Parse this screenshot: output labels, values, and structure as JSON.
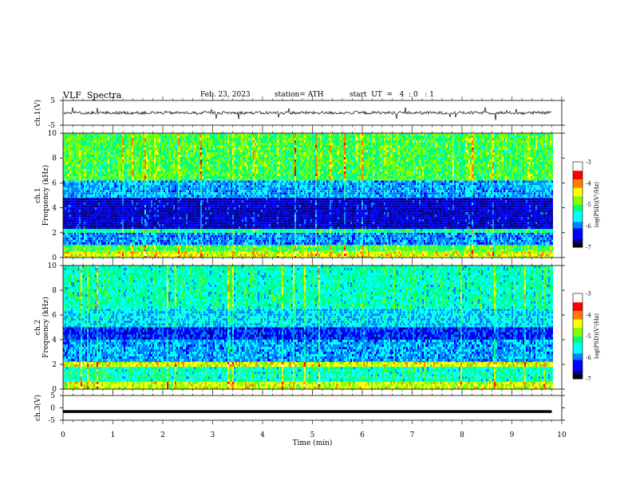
{
  "header": {
    "title": "VLF  Spectra",
    "date": "Feb. 23, 2023",
    "station": "station= ATH",
    "start_ut": "start  UT  =   4  : 0   : 1"
  },
  "chart_data": [
    {
      "type": "line",
      "panel": "ch1-waveform",
      "ylabel": "ch.1(V)",
      "yticks": [
        "5",
        "-5"
      ],
      "ylim": [
        -5,
        5
      ],
      "x_range_min": [
        0,
        9.8
      ],
      "description_note": "",
      "mean_value": 0,
      "noise_amplitude": 1.2,
      "color": "#000000"
    },
    {
      "type": "heatmap",
      "panel": "ch1-spectrogram",
      "ylabel": "Frequency  (kHz)",
      "channel_label": "ch.1",
      "yticks": [
        "0",
        "2",
        "4",
        "6",
        "8",
        "10"
      ],
      "ylim": [
        0,
        10
      ],
      "x_range_min": [
        0,
        9.8
      ],
      "colorbar": {
        "label": "log(PSD)(V²/Hz)",
        "ticks": [
          "-3",
          "-4",
          "-5",
          "-6",
          "-7"
        ],
        "range": [
          -7,
          -3
        ]
      },
      "bands": [
        {
          "f_min": 0.0,
          "f_max": 0.5,
          "level": -4.5
        },
        {
          "f_min": 0.5,
          "f_max": 1.0,
          "level": -5.0
        },
        {
          "f_min": 1.0,
          "f_max": 2.0,
          "level": -6.0
        },
        {
          "f_min": 2.0,
          "f_max": 2.3,
          "level": -5.3
        },
        {
          "f_min": 2.3,
          "f_max": 4.8,
          "level": -6.6
        },
        {
          "f_min": 4.8,
          "f_max": 6.2,
          "level": -5.9
        },
        {
          "f_min": 6.2,
          "f_max": 10.0,
          "level": -5.0
        }
      ]
    },
    {
      "type": "heatmap",
      "panel": "ch2-spectrogram",
      "ylabel": "Frequency  (kHz)",
      "channel_label": "ch.2",
      "yticks": [
        "0",
        "2",
        "4",
        "6",
        "8",
        "10"
      ],
      "ylim": [
        0,
        10
      ],
      "x_range_min": [
        0,
        9.8
      ],
      "colorbar": {
        "label": "log(PSD)(V²/Hz)",
        "ticks": [
          "-3",
          "-4",
          "-5",
          "-6",
          "-7"
        ],
        "range": [
          -7,
          -3
        ]
      },
      "bands": [
        {
          "f_min": 0.0,
          "f_max": 0.6,
          "level": -4.6
        },
        {
          "f_min": 0.6,
          "f_max": 1.8,
          "level": -5.4
        },
        {
          "f_min": 1.8,
          "f_max": 2.2,
          "level": -4.5
        },
        {
          "f_min": 2.2,
          "f_max": 4.0,
          "level": -5.9
        },
        {
          "f_min": 4.0,
          "f_max": 5.0,
          "level": -6.3
        },
        {
          "f_min": 5.0,
          "f_max": 6.5,
          "level": -5.7
        },
        {
          "f_min": 6.5,
          "f_max": 10.0,
          "level": -5.4
        }
      ]
    },
    {
      "type": "line",
      "panel": "ch3-waveform",
      "ylabel": "ch.3(V)",
      "yticks": [
        "5",
        "0",
        "-5"
      ],
      "ylim": [
        -5,
        5
      ],
      "x_range_min": [
        0,
        9.8
      ],
      "mean_value": -1.5,
      "noise_amplitude": 0,
      "color": "#000000"
    }
  ],
  "x_axis": {
    "label": "Time  (min)",
    "ticks": [
      "0",
      "1",
      "2",
      "3",
      "4",
      "5",
      "6",
      "7",
      "8",
      "9",
      "10"
    ],
    "range": [
      0,
      10
    ]
  },
  "colormap": [
    "#000000",
    "#00008b",
    "#0000ff",
    "#0080ff",
    "#00ffff",
    "#00ff80",
    "#80ff00",
    "#ffff00",
    "#ff8000",
    "#ff0000",
    "#ffffff"
  ]
}
